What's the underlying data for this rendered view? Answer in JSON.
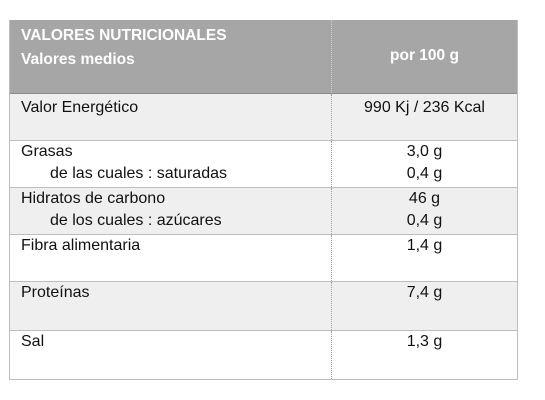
{
  "header": {
    "title": "VALORES NUTRICIONALES",
    "subtitle": "Valores medios",
    "column": "por 100 g"
  },
  "rows": [
    {
      "label": "Valor Energético",
      "value": "990 Kj / 236 Kcal"
    },
    {
      "label": "Grasas",
      "value": "3,0 g",
      "sub_label": "de las cuales : saturadas",
      "sub_value": "0,4 g"
    },
    {
      "label": "Hidratos de carbono",
      "value": "46 g",
      "sub_label": "de los cuales : azúcares",
      "sub_value": "0,4 g"
    },
    {
      "label": "Fibra alimentaria",
      "value": "1,4 g"
    },
    {
      "label": "Proteínas",
      "value": "7,4 g"
    },
    {
      "label": "Sal",
      "value": "1,3 g"
    }
  ]
}
